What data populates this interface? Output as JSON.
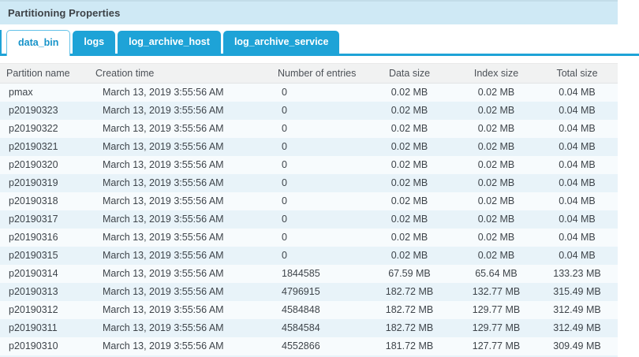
{
  "panel": {
    "title": "Partitioning Properties"
  },
  "tabs": [
    {
      "label": "data_bin",
      "active": true
    },
    {
      "label": "logs",
      "active": false
    },
    {
      "label": "log_archive_host",
      "active": false
    },
    {
      "label": "log_archive_service",
      "active": false
    }
  ],
  "table": {
    "columns": [
      "Partition name",
      "Creation time",
      "Number of entries",
      "Data size",
      "Index size",
      "Total size"
    ],
    "rows": [
      [
        "pmax",
        "March 13, 2019 3:55:56 AM",
        "0",
        "0.02 MB",
        "0.02 MB",
        "0.04 MB"
      ],
      [
        "p20190323",
        "March 13, 2019 3:55:56 AM",
        "0",
        "0.02 MB",
        "0.02 MB",
        "0.04 MB"
      ],
      [
        "p20190322",
        "March 13, 2019 3:55:56 AM",
        "0",
        "0.02 MB",
        "0.02 MB",
        "0.04 MB"
      ],
      [
        "p20190321",
        "March 13, 2019 3:55:56 AM",
        "0",
        "0.02 MB",
        "0.02 MB",
        "0.04 MB"
      ],
      [
        "p20190320",
        "March 13, 2019 3:55:56 AM",
        "0",
        "0.02 MB",
        "0.02 MB",
        "0.04 MB"
      ],
      [
        "p20190319",
        "March 13, 2019 3:55:56 AM",
        "0",
        "0.02 MB",
        "0.02 MB",
        "0.04 MB"
      ],
      [
        "p20190318",
        "March 13, 2019 3:55:56 AM",
        "0",
        "0.02 MB",
        "0.02 MB",
        "0.04 MB"
      ],
      [
        "p20190317",
        "March 13, 2019 3:55:56 AM",
        "0",
        "0.02 MB",
        "0.02 MB",
        "0.04 MB"
      ],
      [
        "p20190316",
        "March 13, 2019 3:55:56 AM",
        "0",
        "0.02 MB",
        "0.02 MB",
        "0.04 MB"
      ],
      [
        "p20190315",
        "March 13, 2019 3:55:56 AM",
        "0",
        "0.02 MB",
        "0.02 MB",
        "0.04 MB"
      ],
      [
        "p20190314",
        "March 13, 2019 3:55:56 AM",
        "1844585",
        "67.59 MB",
        "65.64 MB",
        "133.23 MB"
      ],
      [
        "p20190313",
        "March 13, 2019 3:55:56 AM",
        "4796915",
        "182.72 MB",
        "132.77 MB",
        "315.49 MB"
      ],
      [
        "p20190312",
        "March 13, 2019 3:55:56 AM",
        "4584848",
        "182.72 MB",
        "129.77 MB",
        "312.49 MB"
      ],
      [
        "p20190311",
        "March 13, 2019 3:55:56 AM",
        "4584584",
        "182.72 MB",
        "129.77 MB",
        "312.49 MB"
      ],
      [
        "p20190310",
        "March 13, 2019 3:55:56 AM",
        "4552866",
        "181.72 MB",
        "127.77 MB",
        "309.49 MB"
      ]
    ]
  },
  "colors": {
    "tab_blue": "#1ea3d7",
    "active_tab_text": "#1693c9",
    "titlebar_bg": "#cfe9f5",
    "header_row_bg": "#f1f2f2",
    "row_stripe_light": "#f7fbfd",
    "row_stripe_blue": "#e8f3f9"
  }
}
